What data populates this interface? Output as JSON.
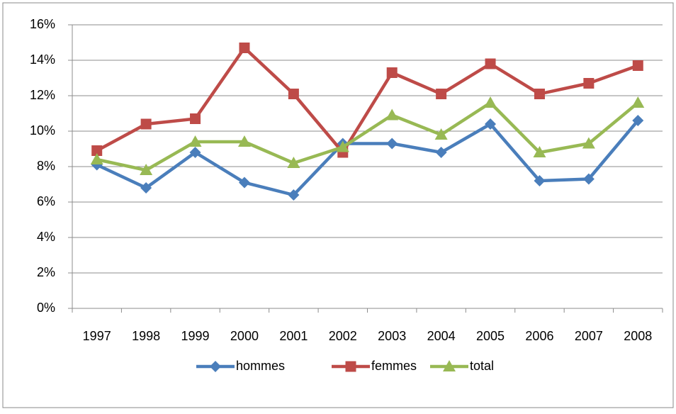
{
  "chart_data": {
    "type": "line",
    "categories": [
      "1997",
      "1998",
      "1999",
      "2000",
      "2001",
      "2002",
      "2003",
      "2004",
      "2005",
      "2006",
      "2007",
      "2008"
    ],
    "series": [
      {
        "name": "hommes",
        "color": "#4a7ebb",
        "marker": "diamond",
        "values": [
          8.1,
          6.8,
          8.8,
          7.1,
          6.4,
          9.3,
          9.3,
          8.8,
          10.4,
          7.2,
          7.3,
          10.6
        ]
      },
      {
        "name": "femmes",
        "color": "#be4b48",
        "marker": "square",
        "values": [
          8.9,
          10.4,
          10.7,
          14.7,
          12.1,
          8.8,
          13.3,
          12.1,
          13.8,
          12.1,
          12.7,
          13.7
        ]
      },
      {
        "name": "total",
        "color": "#98b954",
        "marker": "triangle",
        "values": [
          8.4,
          7.8,
          9.4,
          9.4,
          8.2,
          9.1,
          10.9,
          9.8,
          11.6,
          8.8,
          9.3,
          11.6
        ]
      }
    ],
    "ylim": [
      0,
      16
    ],
    "yticks": [
      {
        "value": 0,
        "label": "0%"
      },
      {
        "value": 2,
        "label": "2%"
      },
      {
        "value": 4,
        "label": "4%"
      },
      {
        "value": 6,
        "label": "6%"
      },
      {
        "value": 8,
        "label": "8%"
      },
      {
        "value": 10,
        "label": "10%"
      },
      {
        "value": 12,
        "label": "12%"
      },
      {
        "value": 14,
        "label": "14%"
      },
      {
        "value": 16,
        "label": "16%"
      }
    ],
    "grid": true,
    "legend": "bottom"
  }
}
